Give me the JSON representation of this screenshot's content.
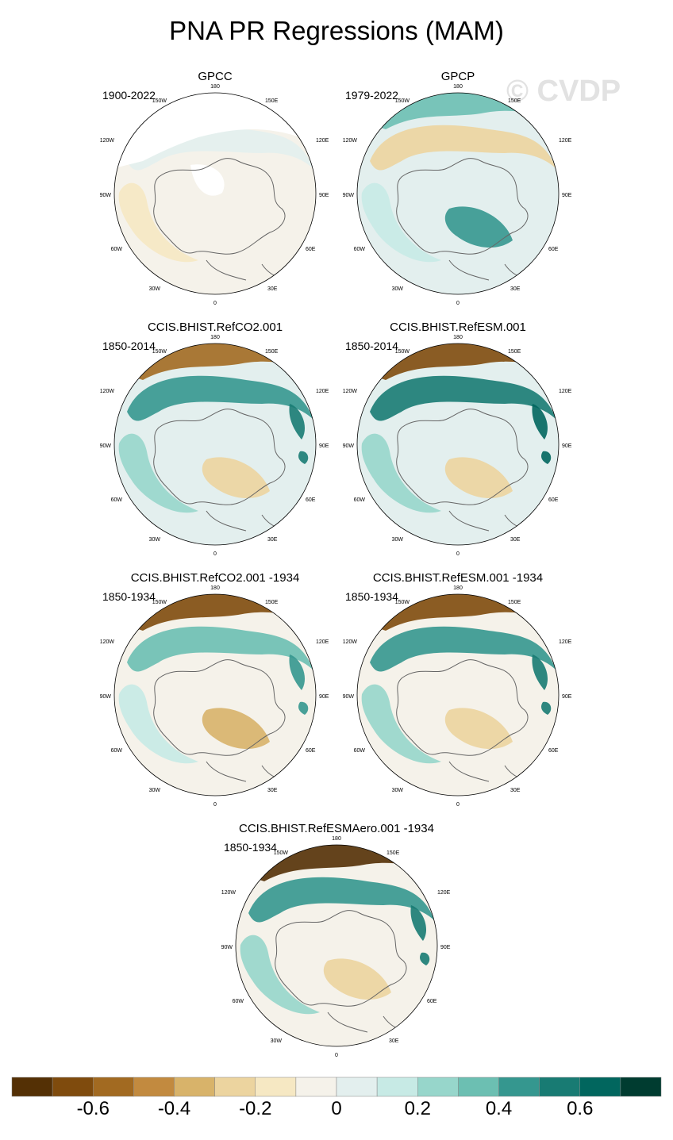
{
  "title": "PNA PR Regressions (MAM)",
  "watermark": "© CVDP",
  "lon_labels": {
    "l180": "180",
    "l150e": "150E",
    "l120e": "120E",
    "l90e": "90E",
    "l60e": "60E",
    "l30e": "30E",
    "l0": "0",
    "l30w": "30W",
    "l60w": "60W",
    "l90w": "90W",
    "l120w": "120W",
    "l150w": "150W"
  },
  "panels": [
    {
      "title": "GPCC",
      "years": "1900-2022"
    },
    {
      "title": "GPCP",
      "years": "1979-2022"
    },
    {
      "title": "CCIS.BHIST.RefCO2.001",
      "years": "1850-2014"
    },
    {
      "title": "CCIS.BHIST.RefESM.001",
      "years": "1850-2014"
    },
    {
      "title": "CCIS.BHIST.RefCO2.001 -1934",
      "years": "1850-1934"
    },
    {
      "title": "CCIS.BHIST.RefESM.001 -1934",
      "years": "1850-1934"
    },
    {
      "title": "CCIS.BHIST.RefESMAero.001 -1934",
      "years": "1850-1934"
    }
  ],
  "colorbar": {
    "colors": [
      "#543005",
      "#7f4b0d",
      "#a26a21",
      "#c28a3f",
      "#d8b36a",
      "#ecd49f",
      "#f6e8c3",
      "#f5f2ea",
      "#e3efee",
      "#c7eae5",
      "#97d6cb",
      "#6cbfb2",
      "#35978f",
      "#187b73",
      "#01665e",
      "#003c30"
    ],
    "labels": [
      "-0.6",
      "-0.4",
      "-0.2",
      "0",
      "0.2",
      "0.4",
      "0.6"
    ]
  }
}
